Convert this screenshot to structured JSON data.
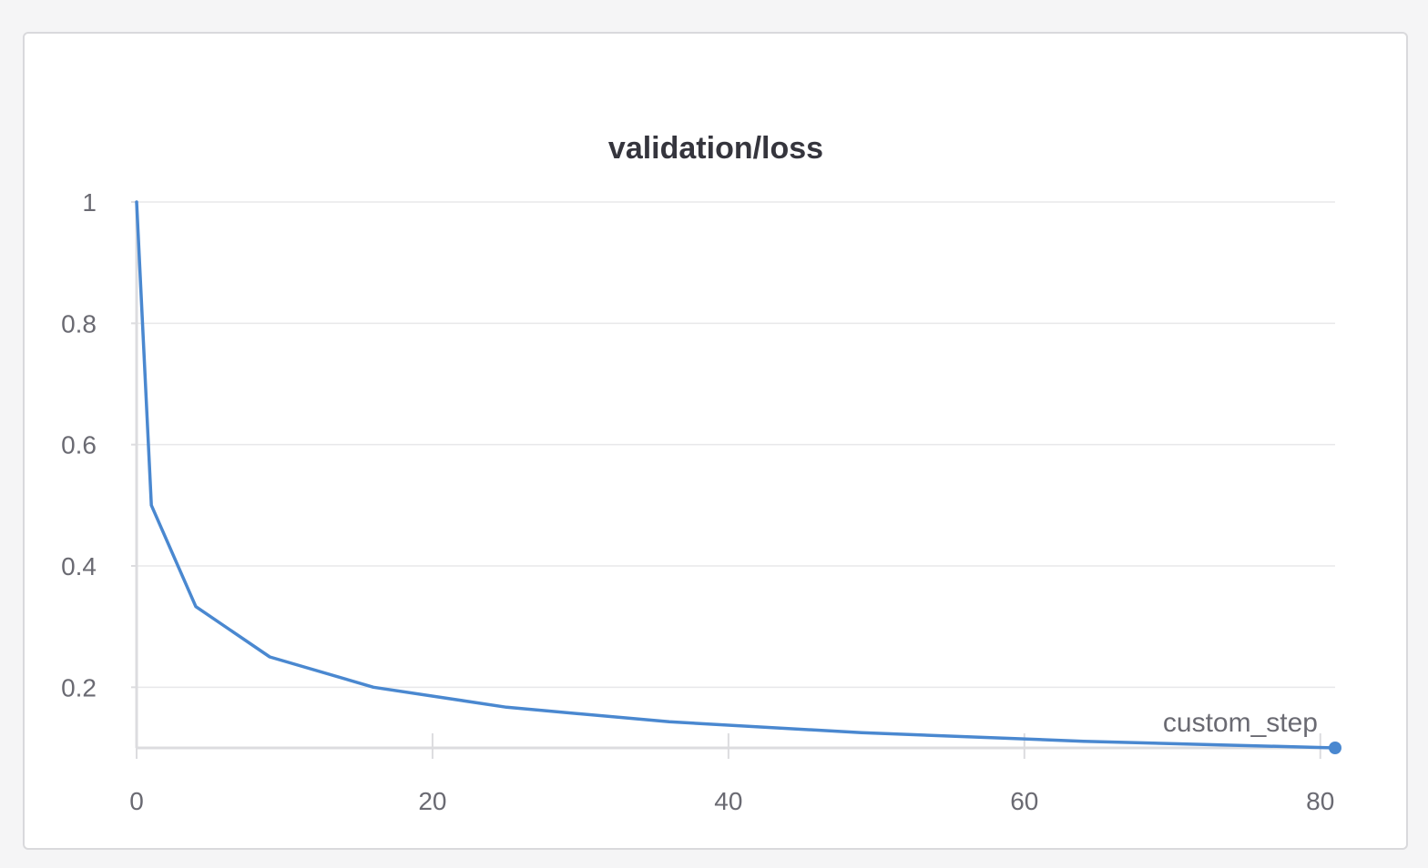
{
  "chart_data": {
    "type": "line",
    "title": "validation/loss",
    "xlabel": "custom_step",
    "ylabel": "",
    "xlim": [
      0,
      81
    ],
    "ylim": [
      0.1,
      1
    ],
    "x_ticks": [
      0,
      20,
      40,
      60,
      80
    ],
    "x_tick_labels": [
      "0",
      "20",
      "40",
      "60",
      "80"
    ],
    "y_ticks": [
      0.2,
      0.4,
      0.6,
      0.8,
      1
    ],
    "y_tick_labels": [
      "0.2",
      "0.4",
      "0.6",
      "0.8",
      "1"
    ],
    "grid": "horizontal",
    "series": [
      {
        "color": "#4a88d0",
        "x": [
          0,
          1,
          4,
          9,
          16,
          25,
          36,
          49,
          64,
          81
        ],
        "y": [
          1.0,
          0.5,
          0.333,
          0.25,
          0.2,
          0.167,
          0.143,
          0.125,
          0.111,
          0.1
        ]
      }
    ]
  },
  "colors": {
    "series": "#4a88d0",
    "grid": "#e8e8ea",
    "axis": "#dcdcdf",
    "panel_border": "#d9d9dc"
  }
}
